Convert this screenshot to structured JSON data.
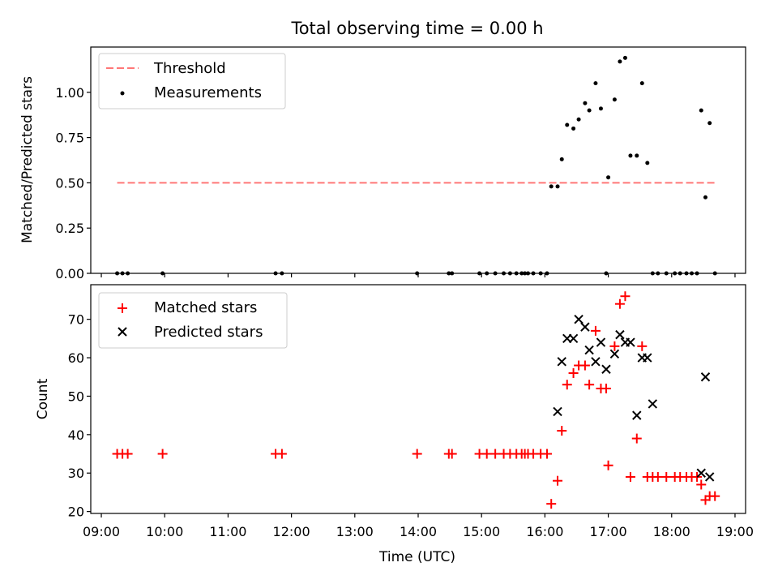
{
  "chart_data": {
    "type": "scatter",
    "title": "Total observing time = 0.00 h",
    "xlabel": "Time (UTC)",
    "x_ticks": [
      "09:00",
      "10:00",
      "11:00",
      "12:00",
      "13:00",
      "14:00",
      "15:00",
      "16:00",
      "17:00",
      "18:00",
      "19:00"
    ],
    "panels": [
      {
        "ylabel": "Matched/Predicted stars",
        "ylim": [
          0,
          1.25
        ],
        "y_ticks": [
          "0.00",
          "0.25",
          "0.50",
          "0.75",
          "1.00"
        ],
        "legend": "top-left",
        "threshold": {
          "name": "Threshold",
          "value": 0.5,
          "x_range": [
            "09:15",
            "18:41"
          ],
          "color": "#ff7777"
        },
        "series": [
          {
            "name": "Measurements",
            "color": "#000000",
            "x": [
              "09:15",
              "09:20",
              "09:25",
              "09:58",
              "11:45",
              "11:51",
              "13:59",
              "14:29",
              "14:32",
              "14:58",
              "15:05",
              "15:13",
              "15:21",
              "15:27",
              "15:33",
              "15:38",
              "15:41",
              "15:44",
              "15:49",
              "15:56",
              "16:02",
              "16:06",
              "16:12",
              "16:16",
              "16:21",
              "16:27",
              "16:32",
              "16:38",
              "16:42",
              "16:48",
              "16:53",
              "16:58",
              "17:00",
              "17:06",
              "17:11",
              "17:16",
              "17:21",
              "17:27",
              "17:32",
              "17:37",
              "17:42",
              "17:47",
              "17:55",
              "18:03",
              "18:08",
              "18:14",
              "18:19",
              "18:24",
              "18:28",
              "18:32",
              "18:36",
              "18:41"
            ],
            "y": [
              0,
              0,
              0,
              0,
              0,
              0,
              0,
              0,
              0,
              0,
              0,
              0,
              0,
              0,
              0,
              0,
              0,
              0,
              0,
              0,
              0,
              0.48,
              0.48,
              0.63,
              0.82,
              0.8,
              0.85,
              0.94,
              0.9,
              1.05,
              0.91,
              0,
              0.53,
              0.96,
              1.17,
              1.19,
              0.65,
              0.65,
              1.05,
              0.61,
              0,
              0,
              0,
              0,
              0,
              0,
              0,
              0,
              0.9,
              0.42,
              0.83,
              0
            ]
          }
        ]
      },
      {
        "ylabel": "Count",
        "ylim": [
          19.5,
          79
        ],
        "y_ticks": [
          "20",
          "30",
          "40",
          "50",
          "60",
          "70"
        ],
        "legend": "top-left",
        "series": [
          {
            "name": "Matched stars",
            "color": "#ff0000",
            "marker": "+",
            "x": [
              "09:15",
              "09:20",
              "09:25",
              "09:58",
              "11:45",
              "11:51",
              "13:59",
              "14:29",
              "14:32",
              "14:58",
              "15:05",
              "15:13",
              "15:21",
              "15:27",
              "15:33",
              "15:38",
              "15:41",
              "15:44",
              "15:49",
              "15:56",
              "16:02",
              "16:06",
              "16:12",
              "16:16",
              "16:21",
              "16:27",
              "16:32",
              "16:38",
              "16:42",
              "16:48",
              "16:53",
              "16:58",
              "17:00",
              "17:06",
              "17:11",
              "17:16",
              "17:21",
              "17:27",
              "17:32",
              "17:37",
              "17:42",
              "17:47",
              "17:55",
              "18:03",
              "18:08",
              "18:14",
              "18:19",
              "18:24",
              "18:28",
              "18:32",
              "18:36",
              "18:41"
            ],
            "y": [
              35,
              35,
              35,
              35,
              35,
              35,
              35,
              35,
              35,
              35,
              35,
              35,
              35,
              35,
              35,
              35,
              35,
              35,
              35,
              35,
              35,
              22,
              28,
              41,
              53,
              56,
              58,
              58,
              53,
              67,
              52,
              52,
              32,
              63,
              74,
              76,
              29,
              39,
              63,
              29,
              29,
              29,
              29,
              29,
              29,
              29,
              29,
              29,
              27,
              23,
              24,
              24
            ]
          },
          {
            "name": "Predicted stars",
            "color": "#000000",
            "marker": "x",
            "x": [
              "16:12",
              "16:16",
              "16:21",
              "16:27",
              "16:32",
              "16:38",
              "16:42",
              "16:48",
              "16:53",
              "16:58",
              "17:06",
              "17:11",
              "17:16",
              "17:21",
              "17:27",
              "17:32",
              "17:37",
              "17:42",
              "18:28",
              "18:32",
              "18:36"
            ],
            "y": [
              46,
              59,
              65,
              65,
              70,
              68,
              62,
              59,
              64,
              57,
              61,
              66,
              64,
              64,
              45,
              60,
              60,
              48,
              30,
              55,
              29
            ]
          }
        ]
      }
    ]
  }
}
